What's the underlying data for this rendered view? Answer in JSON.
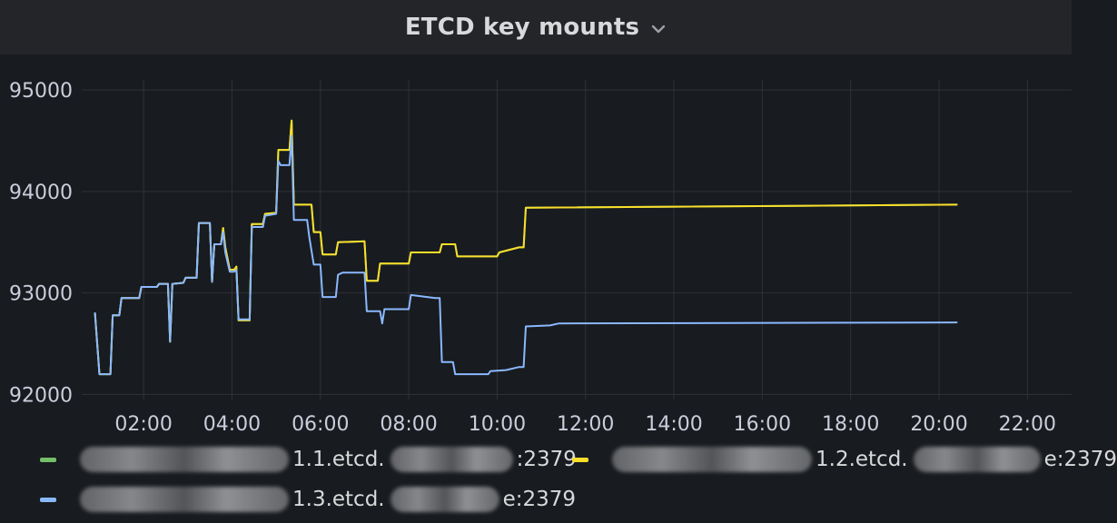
{
  "panel": {
    "title": "ETCD key mounts"
  },
  "chart_data": {
    "type": "line",
    "title": "ETCD key mounts",
    "xlabel": "",
    "ylabel": "",
    "x_ticks": [
      "02:00",
      "04:00",
      "06:00",
      "08:00",
      "10:00",
      "12:00",
      "14:00",
      "16:00",
      "18:00",
      "20:00",
      "22:00"
    ],
    "y_ticks": [
      "95000",
      "94000",
      "93000",
      "92000"
    ],
    "xlim_hours": [
      0.6,
      23.0
    ],
    "ylim": [
      91950,
      95100
    ],
    "grid": true,
    "legend_position": "bottom",
    "series": [
      {
        "name": "1.1.etcd.",
        "name_suffix": ":2379",
        "color": "#73bf69",
        "points": [
          [
            0.9,
            92800
          ],
          [
            1.0,
            92200
          ],
          [
            1.25,
            92200
          ],
          [
            1.3,
            92780
          ],
          [
            1.45,
            92780
          ],
          [
            1.5,
            92950
          ],
          [
            1.9,
            92950
          ],
          [
            1.95,
            93060
          ],
          [
            2.3,
            93060
          ],
          [
            2.35,
            93090
          ],
          [
            2.55,
            93090
          ],
          [
            2.6,
            92520
          ],
          [
            2.65,
            93090
          ],
          [
            2.9,
            93100
          ],
          [
            2.95,
            93150
          ],
          [
            3.2,
            93150
          ],
          [
            3.25,
            93690
          ],
          [
            3.5,
            93690
          ],
          [
            3.55,
            93110
          ],
          [
            3.6,
            93480
          ],
          [
            3.75,
            93480
          ],
          [
            3.8,
            93640
          ],
          [
            3.85,
            93450
          ],
          [
            3.95,
            93230
          ],
          [
            4.05,
            93230
          ],
          [
            4.1,
            93260
          ],
          [
            4.15,
            92730
          ],
          [
            4.4,
            92730
          ],
          [
            4.45,
            93680
          ],
          [
            4.7,
            93680
          ],
          [
            4.75,
            93780
          ],
          [
            5.0,
            93790
          ],
          [
            5.05,
            94410
          ],
          [
            5.3,
            94410
          ],
          [
            5.35,
            94700
          ],
          [
            5.4,
            93870
          ],
          [
            5.8,
            93870
          ],
          [
            5.85,
            93600
          ],
          [
            6.0,
            93600
          ],
          [
            6.05,
            93380
          ],
          [
            6.35,
            93380
          ],
          [
            6.4,
            93500
          ],
          [
            7.0,
            93510
          ],
          [
            7.05,
            93120
          ],
          [
            7.3,
            93120
          ],
          [
            7.35,
            93290
          ],
          [
            8.0,
            93290
          ],
          [
            8.05,
            93400
          ],
          [
            8.7,
            93400
          ],
          [
            8.75,
            93480
          ],
          [
            9.05,
            93480
          ],
          [
            9.1,
            93360
          ],
          [
            10.0,
            93360
          ],
          [
            10.05,
            93400
          ],
          [
            10.5,
            93450
          ],
          [
            10.6,
            93450
          ],
          [
            10.65,
            93840
          ],
          [
            20.4,
            93870
          ]
        ]
      },
      {
        "name": "1.2.etcd.",
        "name_suffix": "e:2379",
        "color": "#fade2a",
        "points": [
          [
            0.9,
            92800
          ],
          [
            1.0,
            92200
          ],
          [
            1.25,
            92200
          ],
          [
            1.3,
            92780
          ],
          [
            1.45,
            92780
          ],
          [
            1.5,
            92950
          ],
          [
            1.9,
            92950
          ],
          [
            1.95,
            93060
          ],
          [
            2.3,
            93060
          ],
          [
            2.35,
            93090
          ],
          [
            2.55,
            93090
          ],
          [
            2.6,
            92520
          ],
          [
            2.65,
            93090
          ],
          [
            2.9,
            93100
          ],
          [
            2.95,
            93150
          ],
          [
            3.2,
            93150
          ],
          [
            3.25,
            93690
          ],
          [
            3.5,
            93690
          ],
          [
            3.55,
            93110
          ],
          [
            3.6,
            93480
          ],
          [
            3.75,
            93480
          ],
          [
            3.8,
            93640
          ],
          [
            3.85,
            93450
          ],
          [
            3.95,
            93230
          ],
          [
            4.05,
            93230
          ],
          [
            4.1,
            93260
          ],
          [
            4.15,
            92730
          ],
          [
            4.4,
            92730
          ],
          [
            4.45,
            93680
          ],
          [
            4.7,
            93680
          ],
          [
            4.75,
            93780
          ],
          [
            5.0,
            93790
          ],
          [
            5.05,
            94410
          ],
          [
            5.3,
            94410
          ],
          [
            5.35,
            94700
          ],
          [
            5.4,
            93870
          ],
          [
            5.8,
            93870
          ],
          [
            5.85,
            93600
          ],
          [
            6.0,
            93600
          ],
          [
            6.05,
            93380
          ],
          [
            6.35,
            93380
          ],
          [
            6.4,
            93500
          ],
          [
            7.0,
            93510
          ],
          [
            7.05,
            93120
          ],
          [
            7.3,
            93120
          ],
          [
            7.35,
            93290
          ],
          [
            8.0,
            93290
          ],
          [
            8.05,
            93400
          ],
          [
            8.7,
            93400
          ],
          [
            8.75,
            93480
          ],
          [
            9.05,
            93480
          ],
          [
            9.1,
            93360
          ],
          [
            10.0,
            93360
          ],
          [
            10.05,
            93400
          ],
          [
            10.5,
            93450
          ],
          [
            10.6,
            93450
          ],
          [
            10.65,
            93840
          ],
          [
            20.4,
            93870
          ]
        ]
      },
      {
        "name": "1.3.etcd.",
        "name_suffix": "e:2379",
        "color": "#8ab8ff",
        "points": [
          [
            0.9,
            92800
          ],
          [
            1.0,
            92200
          ],
          [
            1.25,
            92200
          ],
          [
            1.3,
            92780
          ],
          [
            1.45,
            92780
          ],
          [
            1.5,
            92950
          ],
          [
            1.9,
            92950
          ],
          [
            1.95,
            93060
          ],
          [
            2.3,
            93060
          ],
          [
            2.35,
            93090
          ],
          [
            2.55,
            93090
          ],
          [
            2.6,
            92520
          ],
          [
            2.65,
            93090
          ],
          [
            2.9,
            93100
          ],
          [
            2.95,
            93150
          ],
          [
            3.2,
            93150
          ],
          [
            3.25,
            93690
          ],
          [
            3.5,
            93690
          ],
          [
            3.55,
            93110
          ],
          [
            3.6,
            93480
          ],
          [
            3.75,
            93480
          ],
          [
            3.8,
            93600
          ],
          [
            3.85,
            93400
          ],
          [
            3.95,
            93210
          ],
          [
            4.05,
            93210
          ],
          [
            4.1,
            93230
          ],
          [
            4.15,
            92740
          ],
          [
            4.4,
            92740
          ],
          [
            4.45,
            93650
          ],
          [
            4.7,
            93650
          ],
          [
            4.75,
            93760
          ],
          [
            5.0,
            93780
          ],
          [
            5.05,
            94300
          ],
          [
            5.1,
            94260
          ],
          [
            5.3,
            94260
          ],
          [
            5.35,
            94550
          ],
          [
            5.4,
            93720
          ],
          [
            5.7,
            93720
          ],
          [
            5.75,
            93550
          ],
          [
            5.85,
            93280
          ],
          [
            6.0,
            93280
          ],
          [
            6.05,
            92960
          ],
          [
            6.35,
            92960
          ],
          [
            6.4,
            93180
          ],
          [
            6.5,
            93200
          ],
          [
            7.0,
            93200
          ],
          [
            7.05,
            92820
          ],
          [
            7.35,
            92820
          ],
          [
            7.4,
            92700
          ],
          [
            7.45,
            92840
          ],
          [
            8.0,
            92840
          ],
          [
            8.05,
            92980
          ],
          [
            8.6,
            92950
          ],
          [
            8.7,
            92950
          ],
          [
            8.75,
            92320
          ],
          [
            9.0,
            92320
          ],
          [
            9.05,
            92200
          ],
          [
            9.8,
            92200
          ],
          [
            9.85,
            92230
          ],
          [
            10.2,
            92240
          ],
          [
            10.5,
            92270
          ],
          [
            10.6,
            92270
          ],
          [
            10.65,
            92670
          ],
          [
            11.2,
            92680
          ],
          [
            11.4,
            92700
          ],
          [
            20.4,
            92710
          ]
        ]
      }
    ]
  }
}
